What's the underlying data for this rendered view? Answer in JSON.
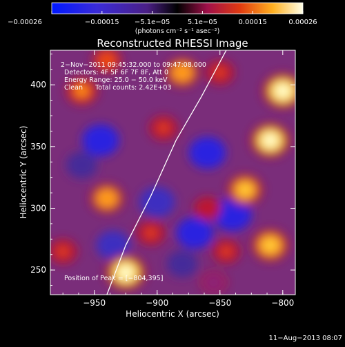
{
  "chart_data": {
    "type": "heatmap",
    "title": "Reconstructed RHESSI Image",
    "xlabel": "Heliocentric X (arcsec)",
    "ylabel": "Heliocentric Y (arcsec)",
    "xlim": [
      -985,
      -790
    ],
    "ylim": [
      230,
      428
    ],
    "xticks": [
      -950,
      -900,
      -850,
      -800
    ],
    "yticks": [
      250,
      300,
      350,
      400
    ],
    "xtick_labels": [
      "−950",
      "−900",
      "−850",
      "−800"
    ],
    "ytick_labels": [
      "250",
      "300",
      "350",
      "400"
    ],
    "colorbar": {
      "range": [
        -0.00026,
        0.00026
      ],
      "tick_labels": [
        "−0.00026",
        "−0.00015",
        "−5.1e−05",
        "5.1e−05",
        "0.00015",
        "0.00026"
      ],
      "unit_label": "(photons cm⁻² s⁻¹ asec⁻²)"
    },
    "annotations": [
      "2−Nov−2011 09:45:32.000 to 09:47:08.000",
      "Detectors: 4F 5F 6F 7F 8F, Att 0",
      "Energy Range: 25.0 − 50.0 keV",
      "Clean      Total counts: 2.42E+03"
    ],
    "peak_label": "Position of Peak = [−804,395]",
    "limb_line": [
      [
        -940,
        230
      ],
      [
        -925,
        270
      ],
      [
        -905,
        310
      ],
      [
        -885,
        355
      ],
      [
        -865,
        390
      ],
      [
        -845,
        428
      ]
    ],
    "bright_sources": [
      {
        "x": -925,
        "y": 248,
        "value": 0.00026
      },
      {
        "x": -940,
        "y": 308,
        "value": 0.00018
      },
      {
        "x": -960,
        "y": 395,
        "value": 0.00016
      },
      {
        "x": -880,
        "y": 410,
        "value": 0.00018
      },
      {
        "x": -895,
        "y": 365,
        "value": 0.00012
      },
      {
        "x": -800,
        "y": 395,
        "value": 0.00026
      },
      {
        "x": -810,
        "y": 355,
        "value": 0.00025
      },
      {
        "x": -830,
        "y": 315,
        "value": 0.0002
      },
      {
        "x": -810,
        "y": 270,
        "value": 0.00022
      },
      {
        "x": -905,
        "y": 280,
        "value": 0.00012
      },
      {
        "x": -860,
        "y": 300,
        "value": 0.0001
      },
      {
        "x": -845,
        "y": 265,
        "value": 0.00011
      },
      {
        "x": -855,
        "y": 240,
        "value": 8e-05
      },
      {
        "x": -975,
        "y": 265,
        "value": 0.00012
      },
      {
        "x": -940,
        "y": 420,
        "value": 0.00013
      },
      {
        "x": -850,
        "y": 410,
        "value": 0.00012
      }
    ],
    "dark_sources": [
      {
        "x": -945,
        "y": 355,
        "value": -0.0002
      },
      {
        "x": -900,
        "y": 305,
        "value": -0.00018
      },
      {
        "x": -860,
        "y": 345,
        "value": -0.0002
      },
      {
        "x": -840,
        "y": 295,
        "value": -0.00022
      },
      {
        "x": -870,
        "y": 280,
        "value": -0.0002
      },
      {
        "x": -935,
        "y": 270,
        "value": -0.00016
      },
      {
        "x": -960,
        "y": 335,
        "value": -0.00012
      },
      {
        "x": -880,
        "y": 255,
        "value": -0.00012
      }
    ]
  },
  "footer": {
    "timestamp": "11−Aug−2013 08:07"
  }
}
